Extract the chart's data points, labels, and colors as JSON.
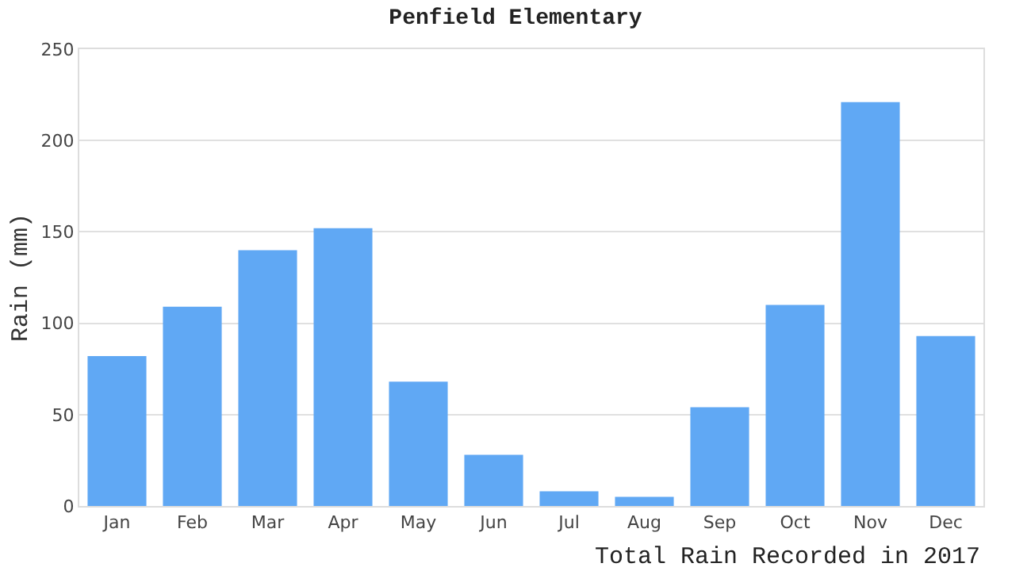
{
  "chart_data": {
    "type": "bar",
    "title": "Penfield Elementary",
    "xlabel": "Total Rain Recorded in 2017",
    "ylabel": "Rain (mm)",
    "categories": [
      "Jan",
      "Feb",
      "Mar",
      "Apr",
      "May",
      "Jun",
      "Jul",
      "Aug",
      "Sep",
      "Oct",
      "Nov",
      "Dec"
    ],
    "values": [
      82,
      109,
      140,
      152,
      68,
      28,
      8,
      5,
      54,
      110,
      221,
      93
    ],
    "color": "#60a8f4",
    "ylim": [
      0,
      250
    ],
    "yticks": [
      0,
      50,
      100,
      150,
      200,
      250
    ],
    "grid": "y"
  }
}
